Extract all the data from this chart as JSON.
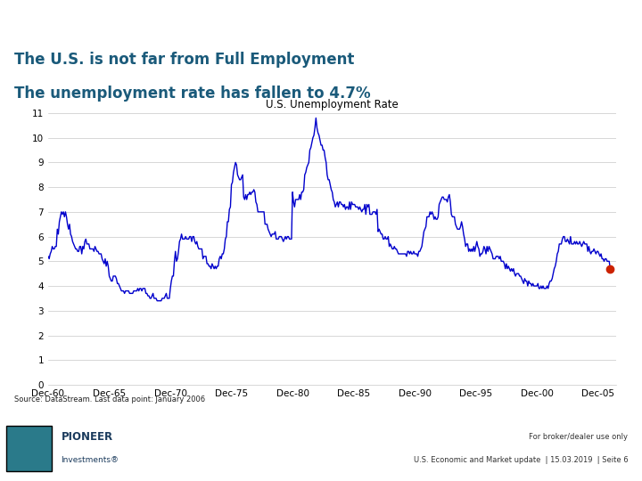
{
  "title_line1": "The U.S. is not far from Full Employment",
  "title_line2": "The unemployment rate has fallen to 4.7%",
  "title_color": "#1a5a7a",
  "header_bg": "#8fa8b8",
  "chart_title": "U.S. Unemployment Rate",
  "chart_title_fontsize": 8.5,
  "ylabel_min": 0,
  "ylabel_max": 11,
  "ylabel_ticks": [
    0,
    1,
    2,
    3,
    4,
    5,
    6,
    7,
    8,
    9,
    10,
    11
  ],
  "source_text": "Source: DataStream. Last data point: January 2006",
  "footer_text_right1": "For broker/dealer use only",
  "footer_text_right2": "U.S. Economic and Market update  | 15.03.2019  | Seite 6",
  "line_color": "#0000cc",
  "dot_color": "#cc2200",
  "footer_bg": "#c5d3dc",
  "bg_color": "#e8eef2",
  "x_tick_labels": [
    "Dec-60",
    "Dec-65",
    "Dec-70",
    "Dec-75",
    "Dec-80",
    "Dec-85",
    "Dec-90",
    "Dec-95",
    "Dec-00",
    "Dec-05"
  ],
  "x_tick_positions": [
    1960,
    1965,
    1970,
    1975,
    1980,
    1985,
    1990,
    1995,
    2000,
    2005
  ],
  "data": {
    "years": [
      1960.0,
      1960.083,
      1960.167,
      1960.25,
      1960.333,
      1960.417,
      1960.5,
      1960.583,
      1960.667,
      1960.75,
      1960.833,
      1960.917,
      1961.0,
      1961.083,
      1961.167,
      1961.25,
      1961.333,
      1961.417,
      1961.5,
      1961.583,
      1961.667,
      1961.75,
      1961.833,
      1961.917,
      1962.0,
      1962.083,
      1962.167,
      1962.25,
      1962.333,
      1962.417,
      1962.5,
      1962.583,
      1962.667,
      1962.75,
      1962.833,
      1962.917,
      1963.0,
      1963.083,
      1963.167,
      1963.25,
      1963.333,
      1963.417,
      1963.5,
      1963.583,
      1963.667,
      1963.75,
      1963.833,
      1963.917,
      1964.0,
      1964.083,
      1964.167,
      1964.25,
      1964.333,
      1964.417,
      1964.5,
      1964.583,
      1964.667,
      1964.75,
      1964.833,
      1964.917,
      1965.0,
      1965.083,
      1965.167,
      1965.25,
      1965.333,
      1965.417,
      1965.5,
      1965.583,
      1965.667,
      1965.75,
      1965.833,
      1965.917,
      1966.0,
      1966.083,
      1966.167,
      1966.25,
      1966.333,
      1966.417,
      1966.5,
      1966.583,
      1966.667,
      1966.75,
      1966.833,
      1966.917,
      1967.0,
      1967.083,
      1967.167,
      1967.25,
      1967.333,
      1967.417,
      1967.5,
      1967.583,
      1967.667,
      1967.75,
      1967.833,
      1967.917,
      1968.0,
      1968.083,
      1968.167,
      1968.25,
      1968.333,
      1968.417,
      1968.5,
      1968.583,
      1968.667,
      1968.75,
      1968.833,
      1968.917,
      1969.0,
      1969.083,
      1969.167,
      1969.25,
      1969.333,
      1969.417,
      1969.5,
      1969.583,
      1969.667,
      1969.75,
      1969.833,
      1969.917,
      1970.0,
      1970.083,
      1970.167,
      1970.25,
      1970.333,
      1970.417,
      1970.5,
      1970.583,
      1970.667,
      1970.75,
      1970.833,
      1970.917,
      1971.0,
      1971.083,
      1971.167,
      1971.25,
      1971.333,
      1971.417,
      1971.5,
      1971.583,
      1971.667,
      1971.75,
      1971.833,
      1971.917,
      1972.0,
      1972.083,
      1972.167,
      1972.25,
      1972.333,
      1972.417,
      1972.5,
      1972.583,
      1972.667,
      1972.75,
      1972.833,
      1972.917,
      1973.0,
      1973.083,
      1973.167,
      1973.25,
      1973.333,
      1973.417,
      1973.5,
      1973.583,
      1973.667,
      1973.75,
      1973.833,
      1973.917,
      1974.0,
      1974.083,
      1974.167,
      1974.25,
      1974.333,
      1974.417,
      1974.5,
      1974.583,
      1974.667,
      1974.75,
      1974.833,
      1974.917,
      1975.0,
      1975.083,
      1975.167,
      1975.25,
      1975.333,
      1975.417,
      1975.5,
      1975.583,
      1975.667,
      1975.75,
      1975.833,
      1975.917,
      1976.0,
      1976.083,
      1976.167,
      1976.25,
      1976.333,
      1976.417,
      1976.5,
      1976.583,
      1976.667,
      1976.75,
      1976.833,
      1976.917,
      1977.0,
      1977.083,
      1977.167,
      1977.25,
      1977.333,
      1977.417,
      1977.5,
      1977.583,
      1977.667,
      1977.75,
      1977.833,
      1977.917,
      1978.0,
      1978.083,
      1978.167,
      1978.25,
      1978.333,
      1978.417,
      1978.5,
      1978.583,
      1978.667,
      1978.75,
      1978.833,
      1978.917,
      1979.0,
      1979.083,
      1979.167,
      1979.25,
      1979.333,
      1979.417,
      1979.5,
      1979.583,
      1979.667,
      1979.75,
      1979.833,
      1979.917,
      1980.0,
      1980.083,
      1980.167,
      1980.25,
      1980.333,
      1980.417,
      1980.5,
      1980.583,
      1980.667,
      1980.75,
      1980.833,
      1980.917,
      1981.0,
      1981.083,
      1981.167,
      1981.25,
      1981.333,
      1981.417,
      1981.5,
      1981.583,
      1981.667,
      1981.75,
      1981.833,
      1981.917,
      1982.0,
      1982.083,
      1982.167,
      1982.25,
      1982.333,
      1982.417,
      1982.5,
      1982.583,
      1982.667,
      1982.75,
      1982.833,
      1982.917,
      1983.0,
      1983.083,
      1983.167,
      1983.25,
      1983.333,
      1983.417,
      1983.5,
      1983.583,
      1983.667,
      1983.75,
      1983.833,
      1983.917,
      1984.0,
      1984.083,
      1984.167,
      1984.25,
      1984.333,
      1984.417,
      1984.5,
      1984.583,
      1984.667,
      1984.75,
      1984.833,
      1984.917,
      1985.0,
      1985.083,
      1985.167,
      1985.25,
      1985.333,
      1985.417,
      1985.5,
      1985.583,
      1985.667,
      1985.75,
      1985.833,
      1985.917,
      1986.0,
      1986.083,
      1986.167,
      1986.25,
      1986.333,
      1986.417,
      1986.5,
      1986.583,
      1986.667,
      1986.75,
      1986.833,
      1986.917,
      1987.0,
      1987.083,
      1987.167,
      1987.25,
      1987.333,
      1987.417,
      1987.5,
      1987.583,
      1987.667,
      1987.75,
      1987.833,
      1987.917,
      1988.0,
      1988.083,
      1988.167,
      1988.25,
      1988.333,
      1988.417,
      1988.5,
      1988.583,
      1988.667,
      1988.75,
      1988.833,
      1988.917,
      1989.0,
      1989.083,
      1989.167,
      1989.25,
      1989.333,
      1989.417,
      1989.5,
      1989.583,
      1989.667,
      1989.75,
      1989.833,
      1989.917,
      1990.0,
      1990.083,
      1990.167,
      1990.25,
      1990.333,
      1990.417,
      1990.5,
      1990.583,
      1990.667,
      1990.75,
      1990.833,
      1990.917,
      1991.0,
      1991.083,
      1991.167,
      1991.25,
      1991.333,
      1991.417,
      1991.5,
      1991.583,
      1991.667,
      1991.75,
      1991.833,
      1991.917,
      1992.0,
      1992.083,
      1992.167,
      1992.25,
      1992.333,
      1992.417,
      1992.5,
      1992.583,
      1992.667,
      1992.75,
      1992.833,
      1992.917,
      1993.0,
      1993.083,
      1993.167,
      1993.25,
      1993.333,
      1993.417,
      1993.5,
      1993.583,
      1993.667,
      1993.75,
      1993.833,
      1993.917,
      1994.0,
      1994.083,
      1994.167,
      1994.25,
      1994.333,
      1994.417,
      1994.5,
      1994.583,
      1994.667,
      1994.75,
      1994.833,
      1994.917,
      1995.0,
      1995.083,
      1995.167,
      1995.25,
      1995.333,
      1995.417,
      1995.5,
      1995.583,
      1995.667,
      1995.75,
      1995.833,
      1995.917,
      1996.0,
      1996.083,
      1996.167,
      1996.25,
      1996.333,
      1996.417,
      1996.5,
      1996.583,
      1996.667,
      1996.75,
      1996.833,
      1996.917,
      1997.0,
      1997.083,
      1997.167,
      1997.25,
      1997.333,
      1997.417,
      1997.5,
      1997.583,
      1997.667,
      1997.75,
      1997.833,
      1997.917,
      1998.0,
      1998.083,
      1998.167,
      1998.25,
      1998.333,
      1998.417,
      1998.5,
      1998.583,
      1998.667,
      1998.75,
      1998.833,
      1998.917,
      1999.0,
      1999.083,
      1999.167,
      1999.25,
      1999.333,
      1999.417,
      1999.5,
      1999.583,
      1999.667,
      1999.75,
      1999.833,
      1999.917,
      2000.0,
      2000.083,
      2000.167,
      2000.25,
      2000.333,
      2000.417,
      2000.5,
      2000.583,
      2000.667,
      2000.75,
      2000.833,
      2000.917,
      2001.0,
      2001.083,
      2001.167,
      2001.25,
      2001.333,
      2001.417,
      2001.5,
      2001.583,
      2001.667,
      2001.75,
      2001.833,
      2001.917,
      2002.0,
      2002.083,
      2002.167,
      2002.25,
      2002.333,
      2002.417,
      2002.5,
      2002.583,
      2002.667,
      2002.75,
      2002.833,
      2002.917,
      2003.0,
      2003.083,
      2003.167,
      2003.25,
      2003.333,
      2003.417,
      2003.5,
      2003.583,
      2003.667,
      2003.75,
      2003.833,
      2003.917,
      2004.0,
      2004.083,
      2004.167,
      2004.25,
      2004.333,
      2004.417,
      2004.5,
      2004.583,
      2004.667,
      2004.75,
      2004.833,
      2004.917,
      2005.0,
      2005.083,
      2005.167,
      2005.25,
      2005.333,
      2005.417,
      2005.5,
      2005.583,
      2005.667,
      2005.75,
      2005.833,
      2005.917,
      2006.0
    ],
    "unemployment": [
      5.2,
      5.1,
      5.3,
      5.4,
      5.6,
      5.5,
      5.5,
      5.6,
      5.6,
      6.3,
      6.1,
      6.6,
      6.8,
      7.0,
      6.9,
      7.0,
      6.8,
      7.0,
      6.8,
      6.5,
      6.3,
      6.5,
      6.1,
      6.0,
      5.8,
      5.7,
      5.6,
      5.5,
      5.5,
      5.4,
      5.4,
      5.6,
      5.6,
      5.3,
      5.6,
      5.5,
      5.8,
      5.9,
      5.7,
      5.7,
      5.7,
      5.5,
      5.5,
      5.5,
      5.5,
      5.4,
      5.6,
      5.5,
      5.4,
      5.4,
      5.3,
      5.3,
      5.3,
      5.1,
      5.0,
      4.9,
      5.1,
      4.8,
      5.0,
      4.8,
      4.4,
      4.3,
      4.2,
      4.2,
      4.4,
      4.4,
      4.4,
      4.3,
      4.1,
      4.1,
      4.0,
      3.9,
      3.8,
      3.8,
      3.8,
      3.7,
      3.8,
      3.8,
      3.8,
      3.8,
      3.7,
      3.7,
      3.7,
      3.7,
      3.8,
      3.8,
      3.8,
      3.8,
      3.9,
      3.8,
      3.9,
      3.9,
      3.8,
      3.9,
      3.9,
      3.9,
      3.7,
      3.7,
      3.6,
      3.6,
      3.5,
      3.5,
      3.6,
      3.7,
      3.5,
      3.5,
      3.5,
      3.4,
      3.4,
      3.4,
      3.4,
      3.4,
      3.5,
      3.5,
      3.5,
      3.6,
      3.7,
      3.5,
      3.5,
      3.5,
      3.9,
      4.2,
      4.4,
      4.4,
      5.0,
      5.4,
      5.0,
      5.1,
      5.4,
      5.8,
      5.9,
      6.1,
      5.9,
      5.9,
      5.9,
      6.0,
      5.9,
      5.9,
      5.9,
      6.0,
      6.0,
      5.8,
      6.0,
      6.0,
      5.8,
      5.7,
      5.8,
      5.6,
      5.5,
      5.5,
      5.5,
      5.5,
      5.1,
      5.2,
      5.2,
      5.2,
      4.9,
      4.9,
      4.8,
      4.8,
      4.7,
      4.9,
      4.8,
      4.7,
      4.8,
      4.7,
      4.8,
      4.8,
      5.1,
      5.2,
      5.1,
      5.3,
      5.3,
      5.5,
      5.9,
      6.0,
      6.6,
      6.6,
      7.1,
      7.2,
      8.1,
      8.2,
      8.6,
      8.8,
      9.0,
      8.9,
      8.5,
      8.4,
      8.3,
      8.3,
      8.4,
      8.5,
      7.6,
      7.5,
      7.7,
      7.5,
      7.7,
      7.7,
      7.8,
      7.7,
      7.8,
      7.8,
      7.9,
      7.8,
      7.4,
      7.3,
      7.0,
      7.0,
      7.0,
      7.0,
      7.0,
      7.0,
      7.0,
      6.5,
      6.5,
      6.5,
      6.3,
      6.2,
      6.1,
      6.0,
      6.1,
      6.1,
      6.1,
      6.2,
      5.9,
      5.9,
      5.9,
      6.0,
      6.0,
      6.0,
      5.9,
      5.8,
      5.9,
      6.0,
      5.9,
      6.0,
      6.0,
      5.9,
      5.9,
      5.9,
      7.8,
      7.4,
      7.2,
      7.5,
      7.5,
      7.5,
      7.5,
      7.7,
      7.5,
      7.8,
      7.8,
      7.9,
      8.5,
      8.6,
      8.8,
      8.9,
      9.0,
      9.5,
      9.6,
      9.8,
      10.0,
      10.1,
      10.4,
      10.8,
      10.4,
      10.2,
      10.1,
      9.9,
      9.7,
      9.7,
      9.5,
      9.5,
      9.2,
      9.0,
      8.5,
      8.3,
      8.3,
      8.1,
      7.9,
      7.8,
      7.5,
      7.4,
      7.2,
      7.3,
      7.4,
      7.2,
      7.4,
      7.4,
      7.3,
      7.3,
      7.2,
      7.3,
      7.1,
      7.2,
      7.2,
      7.1,
      7.4,
      7.1,
      7.4,
      7.3,
      7.3,
      7.3,
      7.2,
      7.2,
      7.2,
      7.1,
      7.2,
      7.1,
      7.0,
      7.1,
      7.1,
      7.3,
      6.9,
      7.3,
      7.2,
      7.3,
      6.9,
      6.9,
      6.9,
      7.0,
      7.0,
      7.0,
      6.9,
      7.1,
      6.2,
      6.3,
      6.2,
      6.1,
      6.1,
      5.9,
      5.9,
      6.0,
      5.9,
      5.9,
      6.0,
      5.6,
      5.7,
      5.6,
      5.5,
      5.5,
      5.6,
      5.5,
      5.5,
      5.4,
      5.3,
      5.3,
      5.3,
      5.3,
      5.3,
      5.3,
      5.3,
      5.3,
      5.2,
      5.4,
      5.4,
      5.3,
      5.4,
      5.3,
      5.3,
      5.4,
      5.3,
      5.3,
      5.3,
      5.2,
      5.4,
      5.4,
      5.5,
      5.6,
      5.9,
      6.2,
      6.3,
      6.4,
      6.8,
      6.8,
      6.8,
      7.0,
      6.9,
      7.0,
      6.9,
      6.7,
      6.8,
      6.7,
      6.7,
      6.8,
      7.3,
      7.4,
      7.5,
      7.6,
      7.6,
      7.5,
      7.5,
      7.5,
      7.4,
      7.6,
      7.7,
      7.4,
      6.9,
      6.8,
      6.8,
      6.8,
      6.5,
      6.4,
      6.3,
      6.3,
      6.3,
      6.4,
      6.6,
      6.4,
      6.1,
      5.9,
      5.6,
      5.7,
      5.7,
      5.4,
      5.5,
      5.4,
      5.5,
      5.4,
      5.6,
      5.4,
      5.6,
      5.8,
      5.6,
      5.5,
      5.2,
      5.3,
      5.3,
      5.4,
      5.6,
      5.5,
      5.3,
      5.6,
      5.4,
      5.6,
      5.5,
      5.4,
      5.3,
      5.1,
      5.1,
      5.1,
      5.2,
      5.2,
      5.2,
      5.1,
      5.2,
      5.0,
      5.0,
      5.0,
      4.9,
      4.7,
      4.9,
      4.7,
      4.8,
      4.7,
      4.6,
      4.7,
      4.6,
      4.7,
      4.5,
      4.4,
      4.5,
      4.5,
      4.5,
      4.4,
      4.4,
      4.3,
      4.2,
      4.1,
      4.3,
      4.2,
      4.2,
      4.0,
      4.2,
      4.1,
      4.1,
      4.0,
      4.1,
      4.0,
      4.0,
      4.0,
      4.0,
      4.1,
      3.9,
      3.9,
      4.0,
      3.9,
      4.0,
      3.9,
      3.9,
      3.9,
      4.0,
      3.9,
      4.1,
      4.2,
      4.2,
      4.3,
      4.5,
      4.7,
      4.8,
      5.0,
      5.3,
      5.4,
      5.7,
      5.7,
      5.7,
      5.9,
      6.0,
      6.0,
      5.8,
      5.8,
      5.9,
      5.8,
      5.7,
      6.0,
      5.7,
      5.7,
      5.7,
      5.8,
      5.7,
      5.8,
      5.7,
      5.7,
      5.8,
      5.7,
      5.6,
      5.7,
      5.8,
      5.7,
      5.7,
      5.7,
      5.4,
      5.6,
      5.4,
      5.3,
      5.4,
      5.4,
      5.5,
      5.4,
      5.3,
      5.4,
      5.4,
      5.3,
      5.2,
      5.3,
      5.1,
      5.1,
      5.0,
      5.1,
      5.1,
      5.0,
      5.0,
      5.0,
      4.7
    ]
  }
}
